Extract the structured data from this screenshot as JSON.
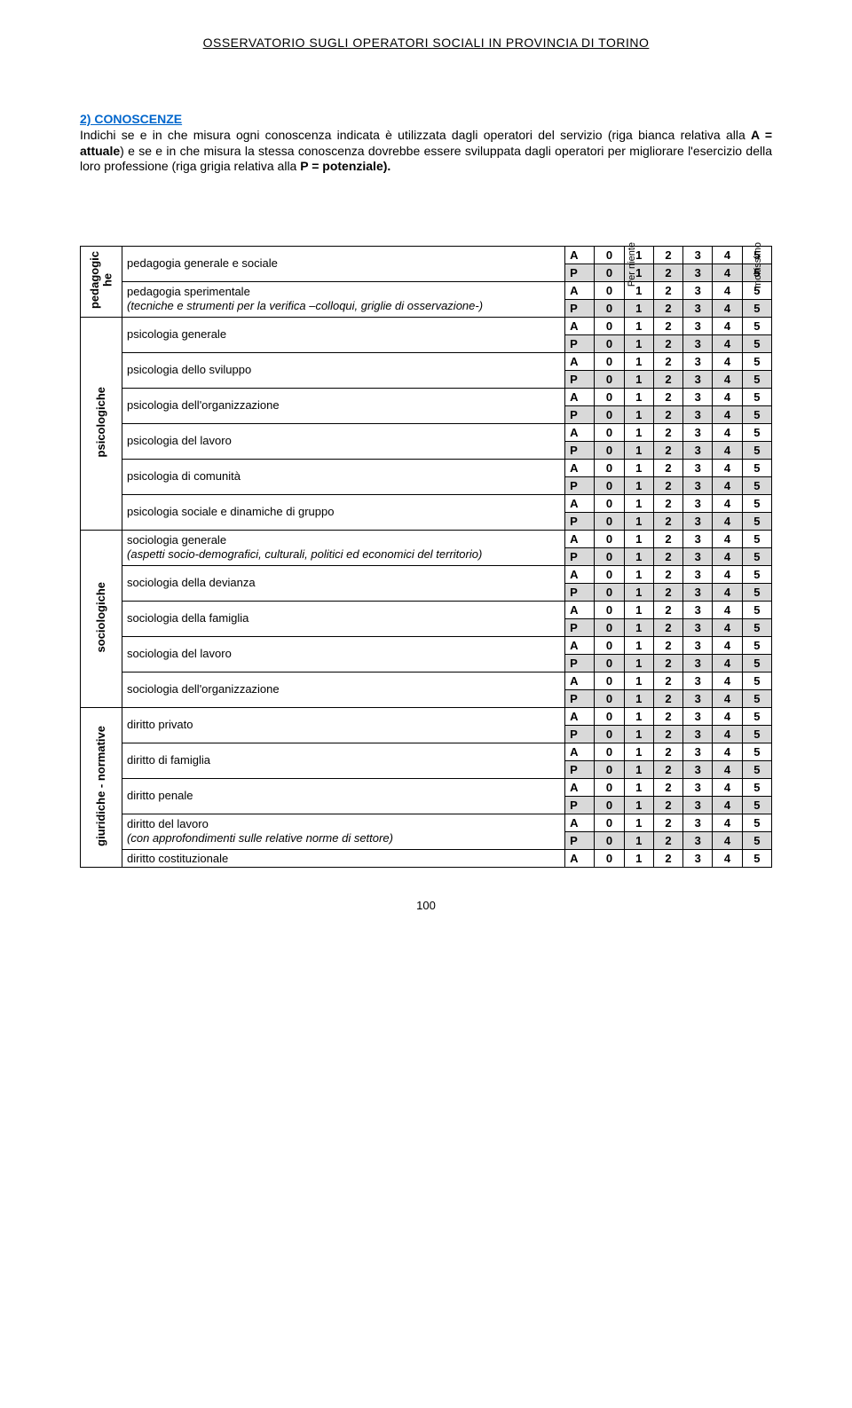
{
  "header": "OSSERVATORIO SUGLI OPERATORI SOCIALI IN PROVINCIA DI TORINO",
  "section_title": "2) CONOSCENZE",
  "intro_parts": {
    "p1": "Indichi se e in che misura ogni conoscenza indicata è utilizzata dagli operatori del servizio (riga bianca relativa alla ",
    "a_eq": "A = attuale",
    "p2": ") e se e in che misura la stessa conoscenza dovrebbe essere sviluppata dagli operatori per migliorare l'esercizio della loro professione (riga grigia relativa alla ",
    "p_eq": "P = potenziale).",
    "p3": ""
  },
  "scale": {
    "left": "Per niente",
    "right": "moltissimo"
  },
  "ratings_a": "A",
  "ratings_p": "P",
  "nums": [
    "0",
    "1",
    "2",
    "3",
    "4",
    "5"
  ],
  "categories": [
    {
      "label": "pedagogic\nhe",
      "items": [
        {
          "text": "pedagogia generale e sociale",
          "sub": ""
        },
        {
          "text": "pedagogia sperimentale",
          "sub": "(tecniche e strumenti per la verifica –colloqui, griglie di osservazione-)"
        }
      ]
    },
    {
      "label": "psicologiche",
      "items": [
        {
          "text": "psicologia generale",
          "sub": ""
        },
        {
          "text": "psicologia dello sviluppo",
          "sub": ""
        },
        {
          "text": "psicologia dell'organizzazione",
          "sub": ""
        },
        {
          "text": "psicologia del lavoro",
          "sub": ""
        },
        {
          "text": "psicologia di comunità",
          "sub": ""
        },
        {
          "text": "psicologia sociale e dinamiche di gruppo",
          "sub": ""
        }
      ]
    },
    {
      "label": "sociologiche",
      "items": [
        {
          "text": "sociologia generale",
          "sub": "(aspetti socio-demografici, culturali, politici ed economici del territorio)"
        },
        {
          "text": "sociologia della devianza",
          "sub": ""
        },
        {
          "text": "sociologia della famiglia",
          "sub": ""
        },
        {
          "text": "sociologia del lavoro",
          "sub": ""
        },
        {
          "text": "sociologia dell'organizzazione",
          "sub": ""
        }
      ]
    },
    {
      "label": "giuridiche - normative",
      "items": [
        {
          "text": "diritto privato",
          "sub": ""
        },
        {
          "text": "diritto di famiglia",
          "sub": ""
        },
        {
          "text": "diritto penale",
          "sub": ""
        },
        {
          "text": "diritto del lavoro",
          "sub": "(con approfondimenti sulle relative norme di settore)"
        },
        {
          "text": "diritto costituzionale",
          "sub": "",
          "single": true
        }
      ]
    }
  ],
  "page_num": "100",
  "colors": {
    "gray": "#d9d9d9",
    "link": "#0066cc"
  }
}
